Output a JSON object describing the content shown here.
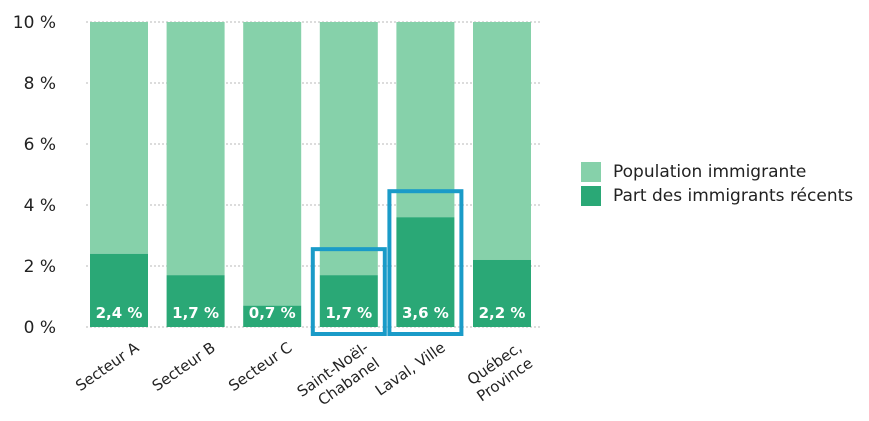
{
  "chart_data": {
    "type": "bar",
    "stacked": true,
    "categories": [
      "Secteur A",
      "Secteur B",
      "Secteur C",
      "Saint-Noël-\nChabanel",
      "Laval, Ville",
      "Québec,\nProvince"
    ],
    "series": [
      {
        "name": "Part des immigrants récents",
        "values": [
          2.4,
          1.7,
          0.7,
          1.7,
          3.6,
          2.2
        ],
        "color": "#2aa876"
      },
      {
        "name": "Population immigrante",
        "values": [
          7.6,
          8.3,
          9.3,
          8.3,
          6.4,
          7.8
        ],
        "color": "#86d1aa"
      }
    ],
    "data_labels": [
      "2,4 %",
      "1,7 %",
      "0,7 %",
      "1,7 %",
      "3,6 %",
      "2,2 %"
    ],
    "y_ticks": [
      "0 %",
      "2 %",
      "4 %",
      "6 %",
      "8 %",
      "10 %"
    ],
    "ylim": [
      0,
      10
    ],
    "highlighted_categories": [
      "Saint-Noël-\nChabanel",
      "Laval, Ville"
    ],
    "highlight_color": "#1a9bc8",
    "grid": "dotted horizontal",
    "legend_position": "right",
    "title": "",
    "xlabel": "",
    "ylabel": ""
  },
  "legend": {
    "items": [
      {
        "label": "Population immigrante",
        "color": "#86d1aa"
      },
      {
        "label": "Part des immigrants récents",
        "color": "#2aa876"
      }
    ]
  }
}
